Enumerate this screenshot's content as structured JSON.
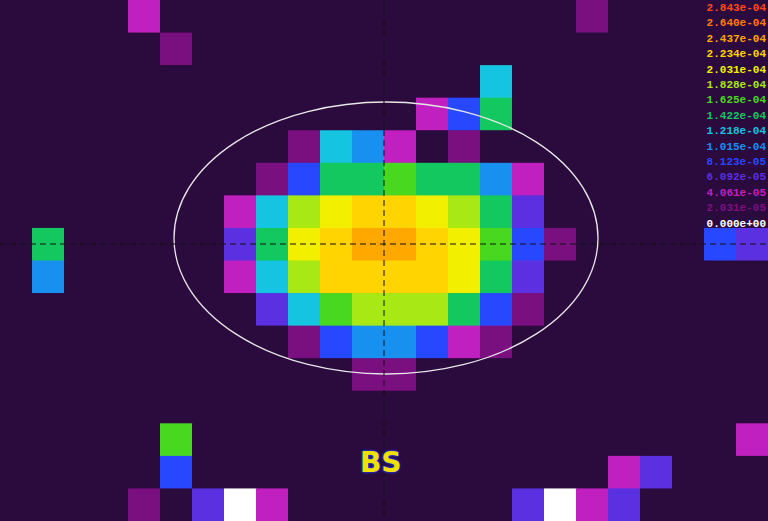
{
  "chart_data": {
    "type": "heatmap",
    "tick_labels": false,
    "xlim": [
      0,
      24
    ],
    "ylim": [
      0,
      16
    ],
    "cells": [
      [
        0,
        0,
        0,
        0,
        5e-05,
        0,
        0,
        0,
        0,
        0,
        0,
        0,
        0,
        0,
        0,
        0,
        0,
        0,
        4e-05,
        0,
        0,
        0,
        0,
        0
      ],
      [
        0,
        0,
        0,
        0,
        0,
        4e-05,
        0,
        0,
        0,
        0,
        0,
        0,
        0,
        0,
        0,
        0,
        0,
        0,
        0,
        0,
        0,
        0,
        0,
        0
      ],
      [
        0,
        0,
        0,
        0,
        0,
        0,
        0,
        0,
        0,
        0,
        0,
        0,
        0,
        0,
        0,
        0.00014,
        0,
        0,
        0,
        0,
        0,
        0,
        0,
        0
      ],
      [
        0,
        0,
        0,
        0,
        0,
        0,
        0,
        0,
        0,
        0,
        0,
        0,
        0,
        5e-05,
        0.0001,
        0.00016,
        0,
        0,
        0,
        0,
        0,
        0,
        0,
        0
      ],
      [
        0,
        0,
        0,
        0,
        0,
        0,
        0,
        0,
        0,
        4e-05,
        0.00013,
        0.00012,
        6e-05,
        0,
        4e-05,
        0,
        0,
        0,
        0,
        0,
        0,
        0,
        0,
        0
      ],
      [
        0,
        0,
        0,
        0,
        0,
        0,
        0,
        0,
        4e-05,
        0.0001,
        0.00015,
        0.00016,
        0.00017,
        0.00016,
        0.00015,
        0.00012,
        5e-05,
        0,
        0,
        0,
        0,
        0,
        0,
        0
      ],
      [
        0,
        0,
        0,
        0,
        0,
        0,
        0,
        5e-05,
        0.00013,
        0.00019,
        0.00022,
        0.00023,
        0.00023,
        0.00022,
        0.0002,
        0.00015,
        7e-05,
        0,
        0,
        0,
        0,
        0,
        0,
        0
      ],
      [
        0,
        0.00015,
        0,
        0,
        0,
        0,
        0,
        8e-05,
        0.00016,
        0.00021,
        0.00024,
        0.00025,
        0.00025,
        0.00024,
        0.00022,
        0.00017,
        9e-05,
        3e-05,
        0,
        0,
        0,
        0,
        0.0001,
        8e-05
      ],
      [
        0,
        0.00012,
        0,
        0,
        0,
        0,
        0,
        6e-05,
        0.00014,
        0.0002,
        0.00023,
        0.00024,
        0.00024,
        0.00023,
        0.00021,
        0.00016,
        7e-05,
        0,
        0,
        0,
        0,
        0,
        0,
        0
      ],
      [
        0,
        0,
        0,
        0,
        0,
        0,
        0,
        0,
        8e-05,
        0.00014,
        0.00018,
        0.0002,
        0.0002,
        0.00019,
        0.00015,
        0.0001,
        4e-05,
        0,
        0,
        0,
        0,
        0,
        0,
        0
      ],
      [
        0,
        0,
        0,
        0,
        0,
        0,
        0,
        0,
        0,
        4e-05,
        9e-05,
        0.00011,
        0.00012,
        0.0001,
        6e-05,
        3e-05,
        0,
        0,
        0,
        0,
        0,
        0,
        0,
        0
      ],
      [
        0,
        0,
        0,
        0,
        0,
        0,
        0,
        0,
        0,
        0,
        0,
        3e-05,
        3e-05,
        0,
        0,
        0,
        0,
        0,
        0,
        0,
        0,
        0,
        0,
        0
      ],
      [
        0,
        0,
        0,
        0,
        0,
        0,
        0,
        0,
        0,
        0,
        0,
        0,
        0,
        0,
        0,
        0,
        0,
        0,
        0,
        0,
        0,
        0,
        0,
        0
      ],
      [
        0,
        0,
        0,
        0,
        0,
        0.00018,
        0,
        0,
        0,
        0,
        0,
        0,
        0,
        0,
        0,
        0,
        0,
        0,
        0,
        0,
        0,
        0,
        0,
        5e-05
      ],
      [
        0,
        0,
        0,
        0,
        0,
        0.0001,
        0,
        0,
        0,
        0,
        0,
        0,
        0,
        0,
        0,
        0,
        0,
        0,
        0,
        6e-05,
        7e-05,
        0,
        0,
        0
      ],
      [
        0,
        0,
        0,
        0,
        4e-05,
        0,
        8e-05,
        0.00029,
        6e-05,
        0,
        0,
        0,
        0,
        0,
        0,
        0,
        8e-05,
        0.00029,
        6e-05,
        7e-05,
        0,
        0,
        0,
        0
      ]
    ],
    "colorbar": {
      "range": [
        0,
        0.0002843
      ],
      "ticks": [
        {
          "value": 0.0002843,
          "label": "2.843e-04"
        },
        {
          "value": 0.000264,
          "label": "2.640e-04"
        },
        {
          "value": 0.0002437,
          "label": "2.437e-04"
        },
        {
          "value": 0.0002234,
          "label": "2.234e-04"
        },
        {
          "value": 0.0002031,
          "label": "2.031e-04"
        },
        {
          "value": 0.0001828,
          "label": "1.828e-04"
        },
        {
          "value": 0.0001625,
          "label": "1.625e-04"
        },
        {
          "value": 0.0001422,
          "label": "1.422e-04"
        },
        {
          "value": 0.0001218,
          "label": "1.218e-04"
        },
        {
          "value": 0.0001015,
          "label": "1.015e-04"
        },
        {
          "value": 8.123e-05,
          "label": "8.123e-05"
        },
        {
          "value": 6.092e-05,
          "label": "6.092e-05"
        },
        {
          "value": 4.061e-05,
          "label": "4.061e-05"
        },
        {
          "value": 2.031e-05,
          "label": "2.031e-05"
        },
        {
          "value": 0,
          "label": "0.000e+00"
        }
      ]
    },
    "annotations": [
      "BS"
    ]
  }
}
